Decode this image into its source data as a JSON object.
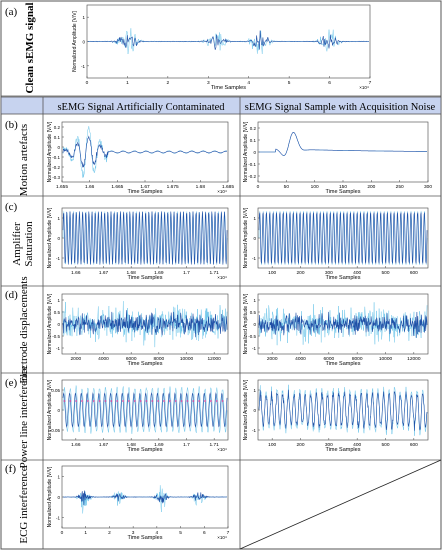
{
  "panels": [
    {
      "letter": "(a)",
      "row_title": "Clean sEMG signal"
    },
    {
      "letter": "(b)",
      "row_title": "Motion artefacts"
    },
    {
      "letter": "(c)",
      "row_title": "Amplifier Saturation"
    },
    {
      "letter": "(d)",
      "row_title": "Electrode displacements"
    },
    {
      "letter": "(e)",
      "row_title": "Power line interference"
    },
    {
      "letter": "(f)",
      "row_title": "ECG interference"
    }
  ],
  "column_headers": {
    "left": "sEMG Signal Artificially Contaminated",
    "right": "sEMG Signal Sample with Acquisition Noise"
  },
  "colors": {
    "signal_dark": "#1f4fa6",
    "signal_light": "#6ec6ea",
    "header_band": "#c7d3ef",
    "pink_markers": "#e24aa0",
    "frame": "#333333"
  },
  "chart_data": [
    {
      "id": "a",
      "type": "line",
      "title": "",
      "xlabel": "Time Samples",
      "ylabel": "Normalized Amplitude [V/V]",
      "xlim": [
        0,
        7
      ],
      "ylim": [
        -1,
        1
      ],
      "x_multiplier": "×10⁴",
      "xticks": [
        "0",
        "1",
        "2",
        "3",
        "4",
        "5",
        "6",
        "7"
      ],
      "yticks": [
        "-1",
        "0",
        "1"
      ],
      "bursts": [
        {
          "center": 1.0,
          "amp": 0.7
        },
        {
          "center": 3.2,
          "amp": 0.55
        },
        {
          "center": 4.3,
          "amp": 0.65
        },
        {
          "center": 6.0,
          "amp": 0.55
        }
      ]
    },
    {
      "id": "b_left",
      "type": "line",
      "xlabel": "Time Samples",
      "ylabel": "Normalized Amplitude [V/V]",
      "xlim": [
        1.655,
        1.685
      ],
      "ylim": [
        -0.3,
        0.3
      ],
      "x_multiplier": "×10⁴",
      "xticks": [
        "1.655",
        "1.66",
        "1.665",
        "1.67",
        "1.675",
        "1.68",
        "1.685"
      ],
      "yticks": [
        "-0.3",
        "-0.2",
        "-0.1",
        "0",
        "0.1",
        "0.2"
      ]
    },
    {
      "id": "b_right",
      "type": "line",
      "xlabel": "Time Samples",
      "ylabel": "Normalized Amplitude [V/V]",
      "xlim": [
        0,
        300
      ],
      "ylim": [
        -0.3,
        0.2
      ],
      "xticks": [
        "0",
        "50",
        "100",
        "150",
        "200",
        "250",
        "300"
      ],
      "yticks": [
        "-0.2",
        "-0.1",
        "0",
        "0.1",
        "0.2"
      ]
    },
    {
      "id": "c_left",
      "type": "line",
      "xlabel": "Time Samples",
      "ylabel": "Normalized Amplitude [V/V]",
      "xlim": [
        1.655,
        1.715
      ],
      "ylim": [
        -1,
        1
      ],
      "x_multiplier": "×10⁴",
      "xticks": [
        "1.66",
        "1.67",
        "1.68",
        "1.69",
        "1.7",
        "1.71"
      ],
      "yticks": [
        "-1",
        "0",
        "1"
      ],
      "cycles": 52
    },
    {
      "id": "c_right",
      "type": "line",
      "xlabel": "Time Samples",
      "ylabel": "Normalized Amplitude [V/V]",
      "xlim": [
        0,
        600
      ],
      "ylim": [
        -1,
        1
      ],
      "xticks": [
        "100",
        "200",
        "300",
        "400",
        "500",
        "600"
      ],
      "yticks": [
        "-1",
        "0",
        "1"
      ],
      "cycles": 50
    },
    {
      "id": "d_left",
      "type": "line",
      "xlabel": "Time Samples",
      "ylabel": "Normalized Amplitude [V/V]",
      "xlim": [
        0,
        12000
      ],
      "ylim": [
        -1,
        1
      ],
      "xticks": [
        "2000",
        "4000",
        "6000",
        "8000",
        "10000",
        "12000"
      ],
      "yticks": [
        "-1",
        "-0.5",
        "0",
        "0.5",
        "1"
      ]
    },
    {
      "id": "d_right",
      "type": "line",
      "xlabel": "Time Samples",
      "ylabel": "Normalized Amplitude [V/V]",
      "xlim": [
        0,
        12000
      ],
      "ylim": [
        -1,
        1
      ],
      "xticks": [
        "2000",
        "4000",
        "6000",
        "8000",
        "10000",
        "12000"
      ],
      "yticks": [
        "-1",
        "-0.5",
        "0",
        "0.5",
        "1"
      ]
    },
    {
      "id": "e_left",
      "type": "line",
      "xlabel": "Time Samples",
      "ylabel": "Normalized Amplitude [V/V]",
      "xlim": [
        1.655,
        1.715
      ],
      "ylim": [
        -0.05,
        0.05
      ],
      "x_multiplier": "×10⁴",
      "xticks": [
        "1.66",
        "1.67",
        "1.68",
        "1.69",
        "1.7",
        "1.71"
      ],
      "yticks": [
        "-0.05",
        "0",
        "0.05"
      ],
      "cycles": 28
    },
    {
      "id": "e_right",
      "type": "line",
      "xlabel": "Time Samples",
      "ylabel": "Normalized Amplitude [V/V]",
      "xlim": [
        0,
        600
      ],
      "ylim": [
        -1,
        1
      ],
      "xticks": [
        "100",
        "200",
        "300",
        "400",
        "500",
        "600"
      ],
      "yticks": [
        "-1",
        "0",
        "1"
      ],
      "cycles": 30
    },
    {
      "id": "f_left",
      "type": "line",
      "xlabel": "Time Samples",
      "ylabel": "Normalized Amplitude [V/V]",
      "xlim": [
        0,
        7
      ],
      "ylim": [
        -1,
        1
      ],
      "x_multiplier": "×10⁴",
      "xticks": [
        "0",
        "1",
        "2",
        "3",
        "4",
        "5",
        "6",
        "7"
      ],
      "yticks": [
        "-1",
        "0",
        "1"
      ],
      "bursts": [
        {
          "center": 0.9,
          "amp": 0.7
        },
        {
          "center": 2.4,
          "amp": 0.45
        },
        {
          "center": 4.2,
          "amp": 0.65
        },
        {
          "center": 5.8,
          "amp": 0.55
        }
      ]
    }
  ]
}
